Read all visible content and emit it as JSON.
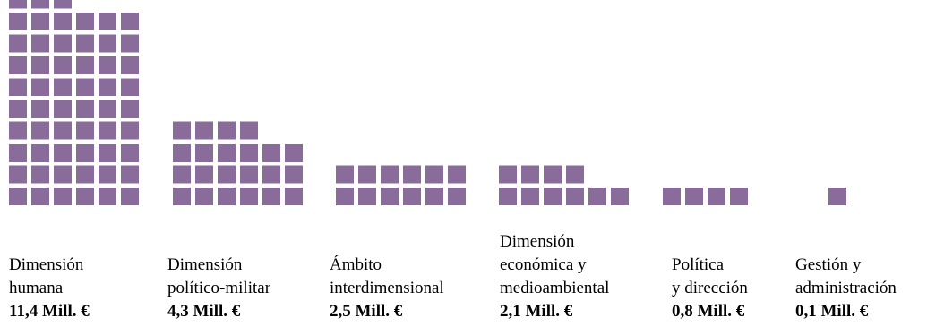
{
  "chart_data": {
    "type": "pictograph",
    "square_color": "#8a6c9b",
    "categories": [
      {
        "name_lines": [
          "Dimensión",
          "humana"
        ],
        "amount_label": "11,4 Mill. €",
        "value": 11.4,
        "squares": 57
      },
      {
        "name_lines": [
          "Dimensión",
          "político-militar"
        ],
        "amount_label": "4,3 Mill. €",
        "value": 4.3,
        "squares": 22
      },
      {
        "name_lines": [
          "Ámbito",
          "interdimensional"
        ],
        "amount_label": "2,5 Mill. €",
        "value": 2.5,
        "squares": 12
      },
      {
        "name_lines": [
          "Dimensión",
          "económica y",
          "medioambiental"
        ],
        "amount_label": "2,1 Mill. €",
        "value": 2.1,
        "squares": 10
      },
      {
        "name_lines": [
          "Política",
          "y dirección"
        ],
        "amount_label": "0,8 Mill. €",
        "value": 0.8,
        "squares": 4
      },
      {
        "name_lines": [
          "Gestión y",
          "administración"
        ],
        "amount_label": "0,1 Mill. €",
        "value": 0.1,
        "squares": 1
      }
    ]
  }
}
